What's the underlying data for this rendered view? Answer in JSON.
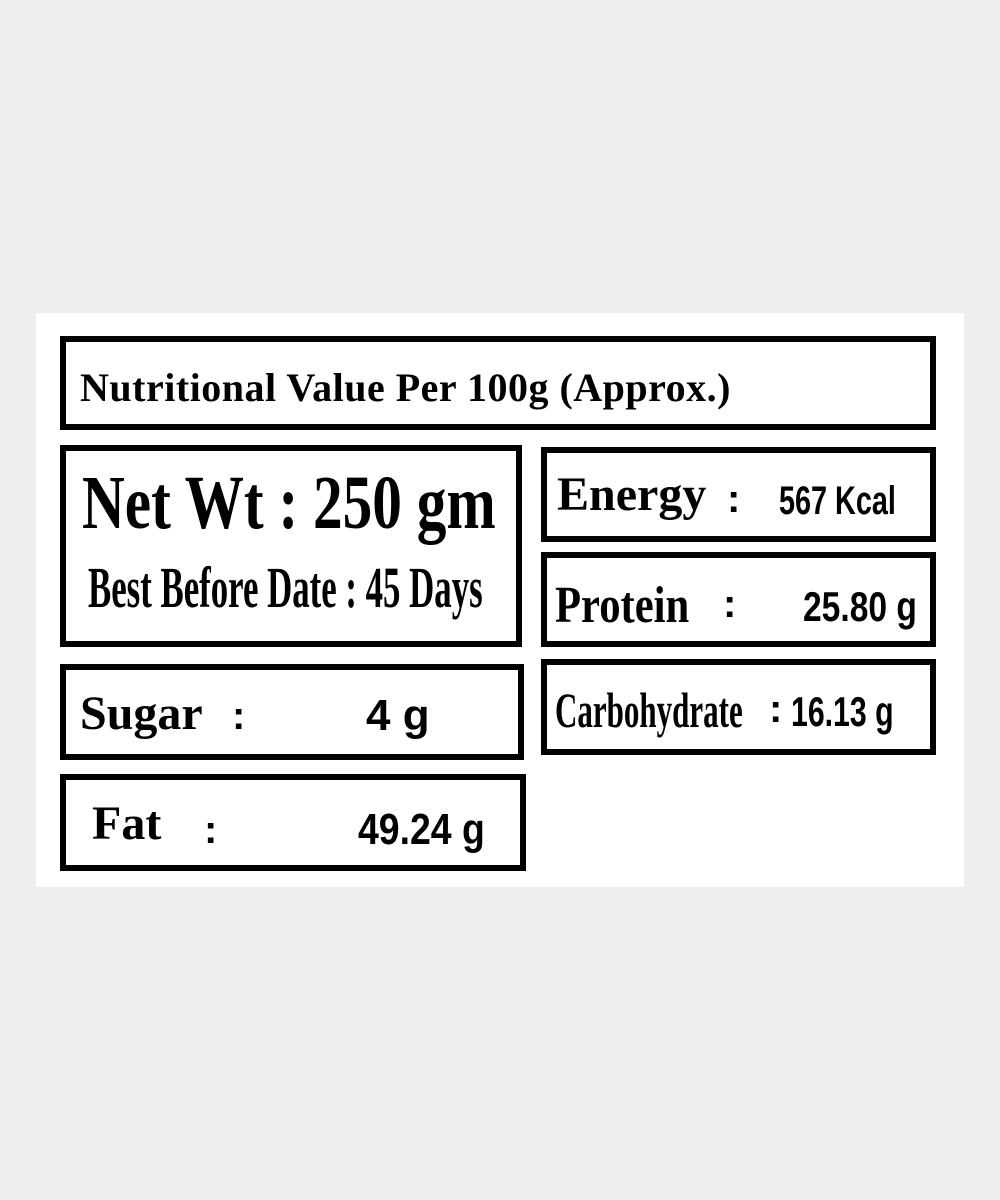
{
  "title": "Nutritional Value Per 100g  (Approx.)",
  "net_weight": {
    "label": "Net Wt :",
    "value": "250 gm"
  },
  "best_before": {
    "label": "Best Before Date :",
    "value": "45 Days"
  },
  "nutrients": {
    "energy": {
      "label": "Energy",
      "sep": ":",
      "value": "567 Kcal"
    },
    "protein": {
      "label": "Protein",
      "sep": ":",
      "value": "25.80 g"
    },
    "carbohydrate": {
      "label": "Carbohydrate",
      "sep": ":",
      "value": "16.13 g"
    },
    "sugar": {
      "label": "Sugar",
      "sep": ":",
      "value": "4 g"
    },
    "fat": {
      "label": "Fat",
      "sep": ":",
      "value": "49.24 g"
    }
  }
}
